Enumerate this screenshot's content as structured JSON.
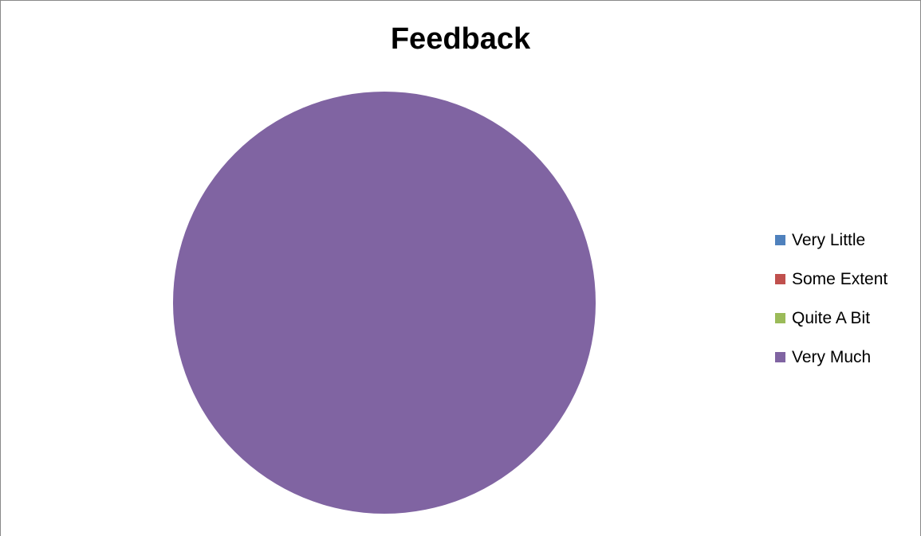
{
  "chart_data": {
    "type": "pie",
    "title": "Feedback",
    "categories": [
      "Very Little",
      "Some Extent",
      "Quite A Bit",
      "Very Much"
    ],
    "values": [
      0,
      0,
      0,
      100
    ],
    "colors": [
      "#4F81BD",
      "#C0504D",
      "#9BBB59",
      "#8064A2"
    ],
    "legend_position": "right"
  }
}
